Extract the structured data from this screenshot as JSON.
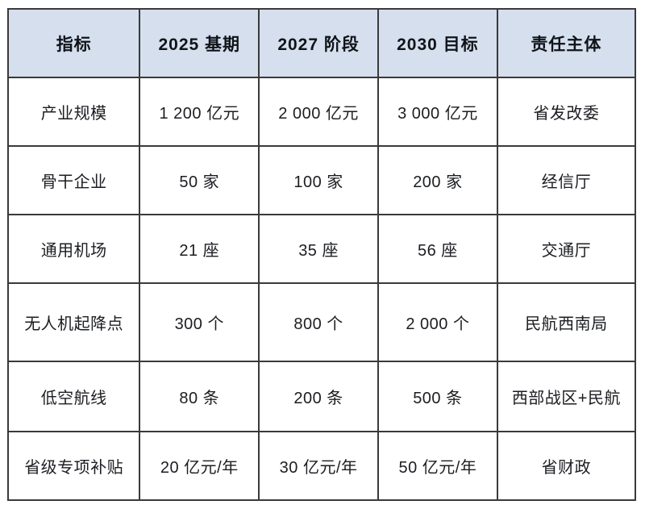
{
  "table": {
    "header": [
      "指标",
      "2025 基期",
      "2027 阶段",
      "2030 目标",
      "责任主体"
    ],
    "rows": [
      [
        "产业规模",
        "1 200 亿元",
        "2 000 亿元",
        "3 000 亿元",
        "省发改委"
      ],
      [
        "骨干企业",
        "50 家",
        "100 家",
        "200 家",
        "经信厅"
      ],
      [
        "通用机场",
        "21 座",
        "35 座",
        "56 座",
        "交通厅"
      ],
      [
        "无人机起降点",
        "300 个",
        "800 个",
        "2 000 个",
        "民航西南局"
      ],
      [
        "低空航线",
        "80 条",
        "200 条",
        "500 条",
        "西部战区+民航"
      ],
      [
        "省级专项补贴",
        "20 亿元/年",
        "30 亿元/年",
        "50 亿元/年",
        "省财政"
      ]
    ],
    "colors": {
      "header_bg": "#d5dfee",
      "border": "#3a3a3a",
      "header_text": "#101418",
      "body_text": "#1b1d21",
      "page_bg": "#ffffff"
    }
  },
  "chart_data": {
    "type": "table",
    "columns": [
      "指标",
      "2025 基期",
      "2027 阶段",
      "2030 目标",
      "责任主体"
    ],
    "rows": [
      [
        "产业规模",
        "1 200 亿元",
        "2 000 亿元",
        "3 000 亿元",
        "省发改委"
      ],
      [
        "骨干企业",
        "50 家",
        "100 家",
        "200 家",
        "经信厅"
      ],
      [
        "通用机场",
        "21 座",
        "35 座",
        "56 座",
        "交通厅"
      ],
      [
        "无人机起降点",
        "300 个",
        "800 个",
        "2 000 个",
        "民航西南局"
      ],
      [
        "低空航线",
        "80 条",
        "200 条",
        "500 条",
        "西部战区+民航"
      ],
      [
        "省级专项补贴",
        "20 亿元/年",
        "30 亿元/年",
        "50 亿元/年",
        "省财政"
      ]
    ]
  }
}
